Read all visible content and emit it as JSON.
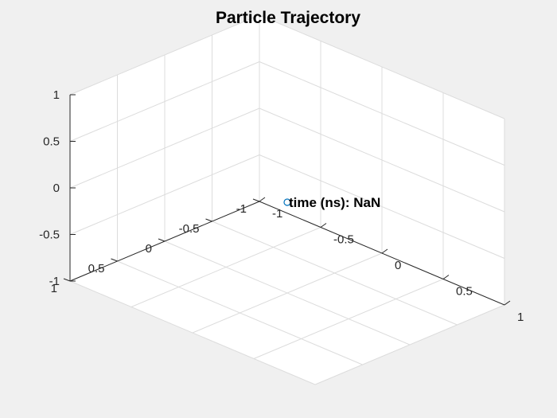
{
  "chart_data": {
    "type": "scatter",
    "dimensions": 3,
    "title": "Particle Trajectory",
    "xlabel": "",
    "ylabel": "",
    "zlabel": "",
    "xlim": [
      -1,
      1
    ],
    "ylim": [
      -1,
      1
    ],
    "zlim": [
      -1,
      1
    ],
    "x_ticks": [
      "-1",
      "-0.5",
      "0",
      "0.5",
      "1"
    ],
    "y_ticks": [
      "-1",
      "-0.5",
      "0",
      "0.5",
      "1"
    ],
    "z_ticks": [
      "-1",
      "-0.5",
      "0",
      "0.5",
      "1"
    ],
    "grid": true,
    "background": "#ffffff",
    "figure_background": "#f0f0f0",
    "marker_color": "#0072bd",
    "points": [
      {
        "x": 0,
        "y": 0,
        "z": 0
      }
    ],
    "annotation": "time (ns): NaN"
  }
}
